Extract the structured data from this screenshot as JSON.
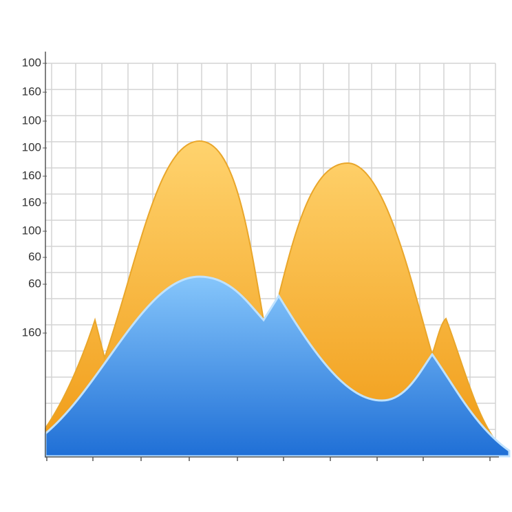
{
  "chart_data": {
    "type": "area",
    "y_axis_labels": [
      "100",
      "160",
      "100",
      "100",
      "160",
      "160",
      "100",
      "60",
      "60",
      "160"
    ]
  }
}
